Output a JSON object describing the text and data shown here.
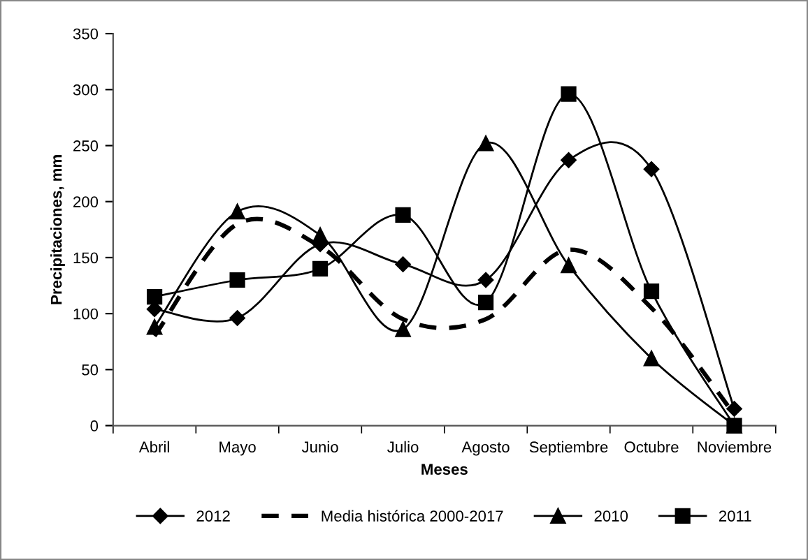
{
  "chart_data": {
    "type": "line",
    "xlabel": "Meses",
    "ylabel": "Precipitaciones, mm",
    "categories": [
      "Abril",
      "Mayo",
      "Junio",
      "Julio",
      "Agosto",
      "Septiembre",
      "Octubre",
      "Noviembre"
    ],
    "series": [
      {
        "name": "2012",
        "color": "#000000",
        "marker": "diamond",
        "line_style": "solid",
        "values": [
          104,
          96,
          162,
          144,
          130,
          237,
          229,
          15
        ]
      },
      {
        "name": "Media histórica 2000-2017",
        "color": "#000000",
        "marker": "none",
        "line_style": "dashed",
        "values": [
          80,
          180,
          160,
          95,
          95,
          157,
          105,
          10
        ]
      },
      {
        "name": "2010",
        "color": "#000000",
        "marker": "triangle",
        "line_style": "solid",
        "values": [
          88,
          191,
          170,
          86,
          252,
          143,
          60,
          0
        ]
      },
      {
        "name": "2011",
        "color": "#000000",
        "marker": "square",
        "line_style": "solid",
        "values": [
          115,
          130,
          140,
          188,
          110,
          296,
          120,
          0
        ]
      }
    ],
    "ylim": [
      0,
      350
    ],
    "yticks": [
      0,
      50,
      100,
      150,
      200,
      250,
      300,
      350
    ],
    "grid": false,
    "legend": "bottom"
  }
}
